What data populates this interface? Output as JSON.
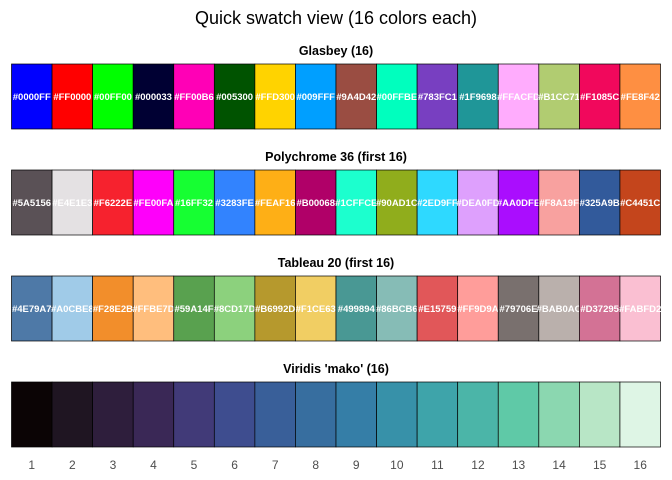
{
  "chart_data": {
    "type": "heatmap",
    "title": "Quick swatch view (16 colors each)",
    "x_ticks": [
      "1",
      "2",
      "3",
      "4",
      "5",
      "6",
      "7",
      "8",
      "9",
      "10",
      "11",
      "12",
      "13",
      "14",
      "15",
      "16"
    ],
    "palettes": [
      {
        "name": "Glasbey (16)",
        "show_labels": true,
        "colors": [
          "#0000FF",
          "#FF0000",
          "#00FF00",
          "#000033",
          "#FF00B6",
          "#005300",
          "#FFD300",
          "#009FFF",
          "#9A4D42",
          "#00FFBE",
          "#783FC1",
          "#1F9698",
          "#FFACFD",
          "#B1CC71",
          "#F1085C",
          "#FE8F42"
        ]
      },
      {
        "name": "Polychrome 36 (first 16)",
        "show_labels": true,
        "colors": [
          "#5A5156",
          "#E4E1E3",
          "#F6222E",
          "#FE00FA",
          "#16FF32",
          "#3283FE",
          "#FEAF16",
          "#B00068",
          "#1CFFCE",
          "#90AD1C",
          "#2ED9FF",
          "#DEA0FD",
          "#AA0DFE",
          "#F8A19F",
          "#325A9B",
          "#C4451C"
        ]
      },
      {
        "name": "Tableau 20 (first 16)",
        "show_labels": true,
        "colors": [
          "#4E79A7",
          "#A0CBE8",
          "#F28E2B",
          "#FFBE7D",
          "#59A14F",
          "#8CD17D",
          "#B6992D",
          "#F1CE63",
          "#499894",
          "#86BCB6",
          "#E15759",
          "#FF9D9A",
          "#79706E",
          "#BAB0AC",
          "#D37295",
          "#FABFD2"
        ]
      },
      {
        "name": "Viridis 'mako' (16)",
        "show_labels": false,
        "colors": [
          "#0B0405",
          "#1F1522",
          "#2E1E3C",
          "#3A2856",
          "#413A78",
          "#3E4D8F",
          "#395F99",
          "#376E9F",
          "#357EA7",
          "#3791A9",
          "#3EA4AA",
          "#4BB5A8",
          "#5FC9A7",
          "#8BD7B0",
          "#B8E6C6",
          "#DEF5E5"
        ]
      }
    ],
    "label_color": "#FFFFFF",
    "border_color": "#000000"
  }
}
